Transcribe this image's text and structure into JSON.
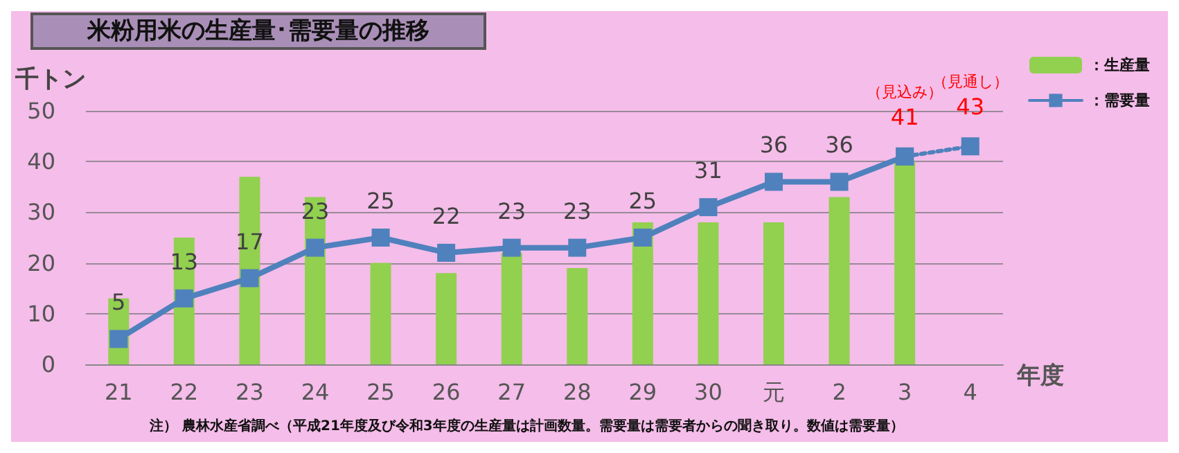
{
  "chart_data": {
    "type": "bar",
    "title": "米粉用米の生産量･需要量の推移",
    "ylabel": "千トン",
    "xlabel": "年度",
    "categories": [
      "21",
      "22",
      "23",
      "24",
      "25",
      "26",
      "27",
      "28",
      "29",
      "30",
      "元",
      "2",
      "3",
      "4"
    ],
    "series": [
      {
        "name": "：生産量",
        "color": "#92d050",
        "values": [
          13,
          25,
          37,
          33,
          20,
          18,
          22,
          19,
          28,
          28,
          28,
          33,
          40,
          null
        ]
      },
      {
        "name": "：需要量",
        "type": "line",
        "color": "#4f81bd",
        "line_style": "solid",
        "values": [
          5,
          13,
          17,
          23,
          25,
          22,
          23,
          23,
          25,
          31,
          36,
          36,
          41,
          null
        ],
        "value_labels": [
          "5",
          "13",
          "17",
          "23",
          "25",
          "22",
          "23",
          "23",
          "25",
          "31",
          "36",
          "36",
          null,
          null
        ]
      },
      {
        "type": "line",
        "color": "#4f81bd",
        "line_style": "dotted",
        "values": [
          null,
          null,
          null,
          null,
          null,
          null,
          null,
          null,
          null,
          null,
          null,
          null,
          41,
          43
        ],
        "value_labels": [
          null,
          null,
          null,
          null,
          null,
          null,
          null,
          null,
          null,
          null,
          null,
          null,
          "41",
          "43"
        ]
      }
    ],
    "annotations": [
      "（見込み）",
      "（見通し）",
      "注） 農林水産省調べ（平成21年度及び令和3年度の生産量は計画数量。需要量は需要者からの聞き取り。数値は需要量）"
    ],
    "ylim": [
      0,
      50
    ],
    "yticks": [
      0,
      10,
      20,
      30,
      40,
      50
    ],
    "grid": "y",
    "legend": "top right",
    "marker": "square"
  }
}
